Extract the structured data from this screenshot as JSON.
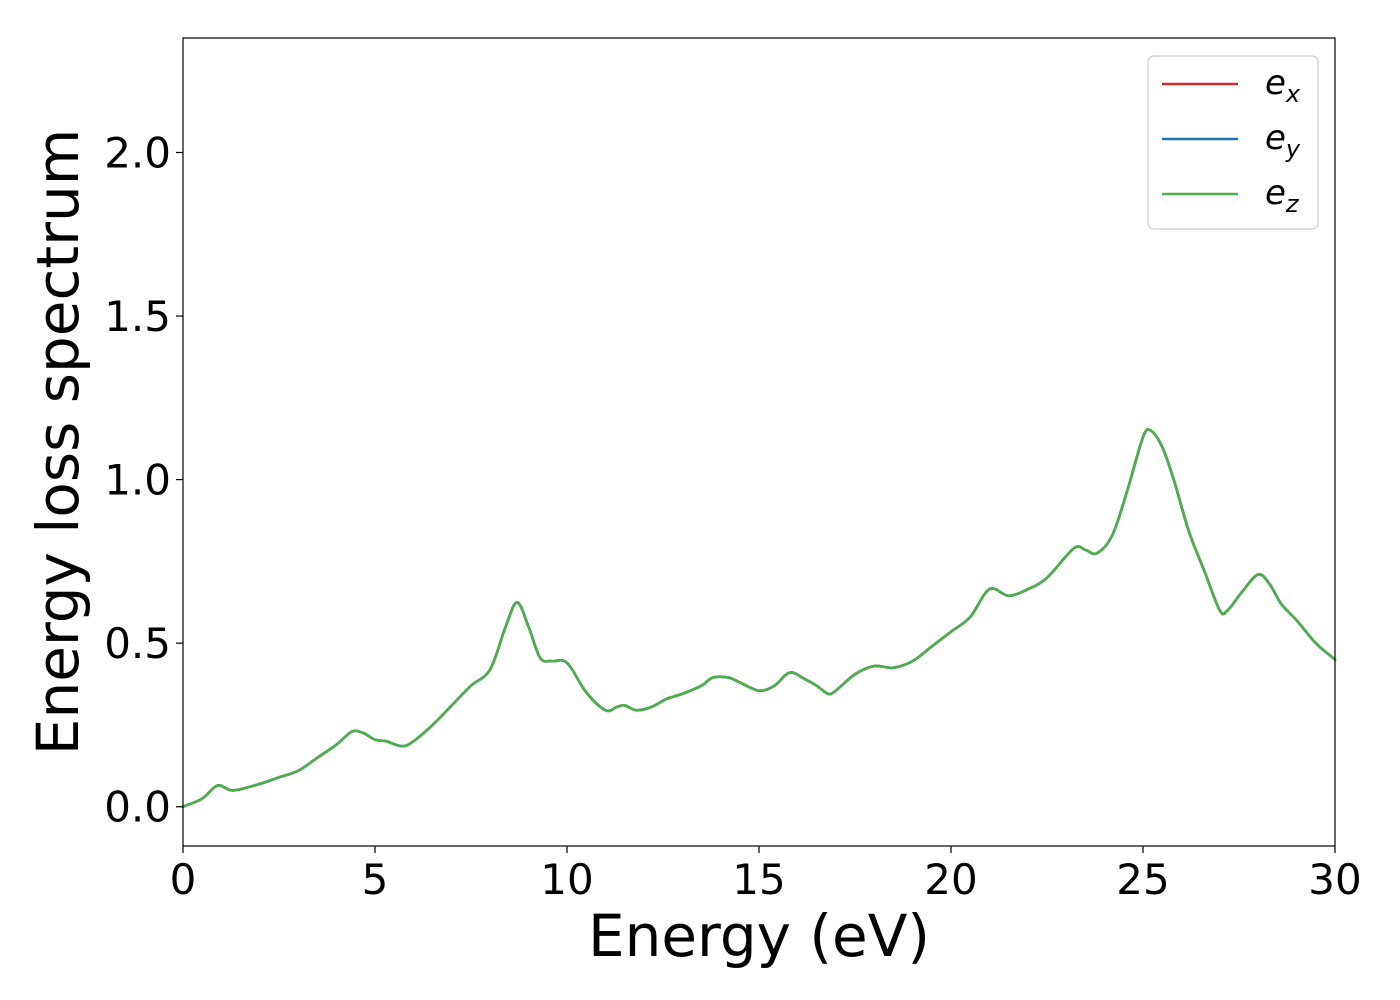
{
  "chart_data": {
    "type": "line",
    "xlabel": "Energy (eV)",
    "ylabel": "Energy loss spectrum",
    "xlim": [
      0,
      30
    ],
    "ylim": [
      -0.12,
      2.35
    ],
    "x_ticks": [
      0,
      5,
      10,
      15,
      20,
      25,
      30
    ],
    "x_tick_labels": [
      "0",
      "5",
      "10",
      "15",
      "20",
      "25",
      "30"
    ],
    "y_ticks": [
      0.0,
      0.5,
      1.0,
      1.5,
      2.0
    ],
    "y_tick_labels": [
      "0.0",
      "0.5",
      "1.0",
      "1.5",
      "2.0"
    ],
    "grid": false,
    "legend_position": "top-right",
    "x": [
      0,
      0.5,
      0.9,
      1.3,
      2.0,
      2.5,
      3.0,
      3.5,
      4.0,
      4.4,
      4.7,
      5.0,
      5.3,
      5.7,
      6.0,
      6.5,
      7.0,
      7.5,
      8.0,
      8.4,
      8.7,
      9.0,
      9.3,
      9.6,
      10.0,
      10.5,
      11.0,
      11.3,
      11.5,
      11.8,
      12.2,
      12.6,
      13.0,
      13.5,
      13.8,
      14.2,
      14.5,
      15.0,
      15.4,
      15.8,
      16.2,
      16.5,
      16.8,
      17.0,
      17.5,
      18.0,
      18.5,
      19.0,
      19.5,
      20.0,
      20.5,
      21.0,
      21.5,
      22.0,
      22.5,
      23.2,
      23.5,
      23.8,
      24.2,
      24.6,
      25.0,
      25.2,
      25.5,
      25.8,
      26.2,
      26.6,
      27.0,
      27.2,
      27.6,
      28.0,
      28.3,
      28.6,
      29.0,
      29.5,
      30.0
    ],
    "series": [
      {
        "name": "e_x",
        "legend_base": "e",
        "legend_sub": "x",
        "color": "#d62728",
        "values": [
          0.0,
          0.025,
          0.065,
          0.05,
          0.07,
          0.09,
          0.11,
          0.15,
          0.19,
          0.23,
          0.225,
          0.205,
          0.2,
          0.185,
          0.2,
          0.25,
          0.31,
          0.37,
          0.42,
          0.55,
          0.625,
          0.55,
          0.455,
          0.445,
          0.44,
          0.35,
          0.295,
          0.305,
          0.31,
          0.295,
          0.305,
          0.33,
          0.345,
          0.37,
          0.395,
          0.395,
          0.38,
          0.355,
          0.37,
          0.41,
          0.39,
          0.37,
          0.345,
          0.355,
          0.405,
          0.43,
          0.425,
          0.445,
          0.49,
          0.535,
          0.58,
          0.665,
          0.645,
          0.665,
          0.7,
          0.79,
          0.785,
          0.775,
          0.83,
          0.97,
          1.13,
          1.15,
          1.1,
          1.0,
          0.84,
          0.72,
          0.6,
          0.6,
          0.66,
          0.71,
          0.68,
          0.62,
          0.57,
          0.5,
          0.45
        ]
      },
      {
        "name": "e_y",
        "legend_base": "e",
        "legend_sub": "y",
        "color": "#1f77b4",
        "values": [
          0.0,
          0.025,
          0.065,
          0.05,
          0.07,
          0.09,
          0.11,
          0.15,
          0.19,
          0.23,
          0.225,
          0.205,
          0.2,
          0.185,
          0.2,
          0.25,
          0.31,
          0.37,
          0.42,
          0.55,
          0.625,
          0.55,
          0.455,
          0.445,
          0.44,
          0.35,
          0.295,
          0.305,
          0.31,
          0.295,
          0.305,
          0.33,
          0.345,
          0.37,
          0.395,
          0.395,
          0.38,
          0.355,
          0.37,
          0.41,
          0.39,
          0.37,
          0.345,
          0.355,
          0.405,
          0.43,
          0.425,
          0.445,
          0.49,
          0.535,
          0.58,
          0.665,
          0.645,
          0.665,
          0.7,
          0.79,
          0.785,
          0.775,
          0.83,
          0.97,
          1.13,
          1.15,
          1.1,
          1.0,
          0.84,
          0.72,
          0.6,
          0.6,
          0.66,
          0.71,
          0.68,
          0.62,
          0.57,
          0.5,
          0.45
        ]
      },
      {
        "name": "e_z",
        "legend_base": "e",
        "legend_sub": "z",
        "color": "#4daf4a",
        "values": [
          0.0,
          0.025,
          0.065,
          0.05,
          0.07,
          0.09,
          0.11,
          0.15,
          0.19,
          0.23,
          0.225,
          0.205,
          0.2,
          0.185,
          0.2,
          0.25,
          0.31,
          0.37,
          0.42,
          0.55,
          0.625,
          0.55,
          0.455,
          0.445,
          0.44,
          0.35,
          0.295,
          0.305,
          0.31,
          0.295,
          0.305,
          0.33,
          0.345,
          0.37,
          0.395,
          0.395,
          0.38,
          0.355,
          0.37,
          0.41,
          0.39,
          0.37,
          0.345,
          0.355,
          0.405,
          0.43,
          0.425,
          0.445,
          0.49,
          0.535,
          0.58,
          0.665,
          0.645,
          0.665,
          0.7,
          0.79,
          0.785,
          0.775,
          0.83,
          0.97,
          1.13,
          1.15,
          1.1,
          1.0,
          0.84,
          0.72,
          0.6,
          0.6,
          0.66,
          0.71,
          0.68,
          0.62,
          0.57,
          0.5,
          0.45
        ]
      }
    ]
  }
}
